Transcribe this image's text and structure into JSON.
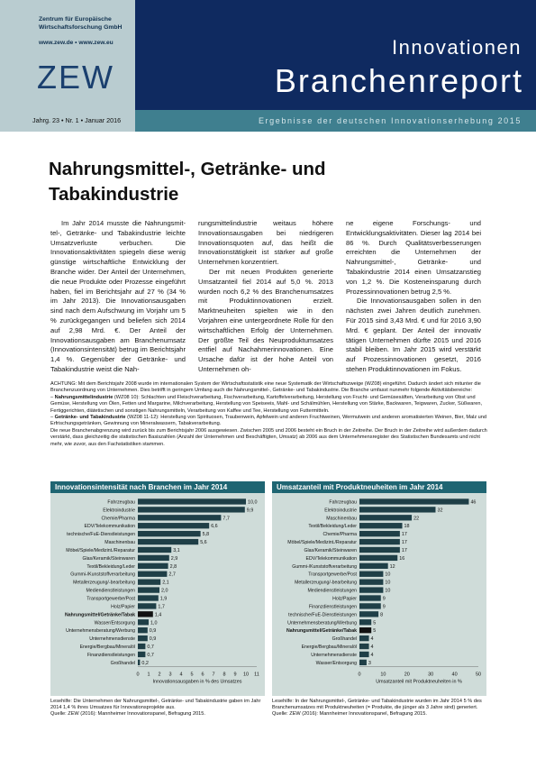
{
  "header": {
    "institute_line1": "Zentrum für Europäische",
    "institute_line2": "Wirtschaftsforschung GmbH",
    "website": "www.zew.de • www.zew.eu",
    "logo": "ZEW",
    "series_line1": "Innovationen",
    "series_line2": "Branchenreport",
    "issue": "Jahrg. 23 • Nr. 1 • Januar 2016",
    "subtitle": "Ergebnisse der deutschen Innovationserhebung 2015"
  },
  "article": {
    "title_line1": "Nahrungsmittel-, Getränke- und",
    "title_line2": "Tabakindustrie",
    "col1": "Im Jahr 2014 musste die Nahrungsmit-tel-, Getränke- und Tabakindustrie leichte Umsatzverluste verbuchen. Die Innovationsaktivitäten spiegeln diese wenig günstige wirtschaftliche Entwicklung der Branche wider. Der Anteil der Unternehmen, die neue Produkte oder Prozesse eingeführt haben, fiel im Berichtsjahr auf 27 % (34 % im Jahr 2013). Die Innovationsausgaben sind nach dem Aufschwung im Vorjahr um 5 % zurückgegangen und beliefen sich 2014 auf 2,98 Mrd. €. Der Anteil der Innovationsausgaben am Branchenumsatz (Innovationsintensität) betrug im Berichtsjahr 1,4 %. Gegenüber der Getränke- und Tabakindustrie weist die Nah-",
    "col2_p1": "rungsmittelindustrie weitaus höhere Innovationsausgaben bei niedrigeren Innovationsquoten auf, das heißt die Innovationstätigkeit ist stärker auf große Unternehmen konzentriert.",
    "col2_p2": "Der mit neuen Produkten generierte Umsatzanteil fiel 2014 auf 5,0 %. 2013 wurden noch 6,2 % des Branchenumsatzes mit Produktinnovationen erzielt. Marktneuheiten spielten wie in den Vorjahren eine untergeordnete Rolle für den wirtschaftlichen Erfolg der Unternehmen. Der größte Teil des Neuproduktumsatzes entfiel auf Nachahmerinnovationen. Eine Ursache dafür ist der hohe Anteil von Unternehmen oh-",
    "col3_p1": "ne eigene Forschungs- und Entwicklungsaktivitäten. Dieser lag 2014 bei 86 %. Durch Qualitätsverbesserungen erreichten die Unternehmen der Nahrungsmittel-, Getränke- und Tabakindustrie 2014 einen Umsatzanstieg von 1,2 %. Die Kosteneinsparung durch Prozessinnovationen betrug 2,5 %.",
    "col3_p2": "Die Innovationsausgaben sollen in den nächsten zwei Jahren deutlich zunehmen. Für 2015 sind 3,43 Mrd. € und für 2016 3,90 Mrd. € geplant. Der Anteil der innovativ tätigen Unternehmen dürfte 2015 und 2016 stabil bleiben. Im Jahr 2015 wird verstärkt auf Prozessinnovationen gesetzt, 2016 stehen Produktinnovationen im Fokus."
  },
  "note": {
    "intro": "ACHTUNG: Mit dem Berichtsjahr 2008 wurde im internationalen System der Wirtschaftsstatistik eine neue Systematik der Wirtschaftszweige (WZ08) eingeführt. Dadurch ändert sich mitunter die Branchenzuordnung von Unternehmen. Dies betrifft in geringem Umfang auch die Nahrungsmittel-, Getränke- und Tabakindustrie. Die Branche umfasst nunmehr folgende Aktivitätsbereiche:",
    "item1_head": "Nahrungsmittelindustrie",
    "item1_text": " (WZ08 10): Schlachten und Fleischverarbeitung, Fischverarbeitung, Kartoffelverarbeitung, Herstellung von Frucht- und Gemüsesäften, Verarbeitung von Obst und Gemüse, Herstellung von Ölen, Fetten und Margarine, Milchverarbeitung, Herstellung von Speiseeis, Mahl- und Schälmühlen, Herstellung von Stärke, Backwaren, Teigwaren, Zucker, Süßwaren, Fertiggerichten, diätetischen und sonstigen Nahrungsmitteln, Verarbeitung von Kaffee und Tee, Herstellung von Futtermitteln.",
    "item2_head": "Getränke- und Tabakindustrie",
    "item2_text": " (WZ08 11-12): Herstellung von Spirituosen, Traubenwein, Apfelwein und anderen Fruchtweinen, Wermutwein und anderen aromatisierten Weinen, Bier, Malz und Erfrischungsgetränken, Gewinnung von Mineralwassern, Tabakverarbeitung.",
    "outro": "Die neue Branchenabgrenzung wird zurück bis zum Berichtsjahr 2006 ausgewiesen. Zwischen 2005 und 2006 besteht ein Bruch in der Zeitreihe. Der Bruch in der Zeitreihe wird außerdem dadurch verstärkt, dass gleichzeitig die statistischen Basiszahlen (Anzahl der Unternehmen und Beschäftigten, Umsatz) ab 2006 aus dem Unternehmensregister des Statistischen Bundesamts und nicht mehr, wie zuvor, aus den Fachstatistiken stammen."
  },
  "captions": {
    "chart1": "Lesehilfe: Die Unternehmen der Nahrungsmittel-, Getränke- und Tabakindustrie gaben im Jahr 2014 1,4 % ihres Umsatzes für Innovationsprojekte aus.",
    "chart1_src": "Quelle: ZEW (2016): Mannheimer Innovationspanel, Befragung 2015.",
    "chart2": "Lesehilfe: In der Nahrungsmittel-, Getränke- und Tabakindustrie wurden im Jahr 2014 5 % des Branchenumsatzes mit Produktneuheiten (= Produkte, die jünger als 3 Jahre sind) generiert.",
    "chart2_src": "Quelle: ZEW (2016): Mannheimer Innovationspanel, Befragung 2015."
  },
  "chart_data": [
    {
      "type": "bar",
      "orientation": "horizontal",
      "title": "Innovationsintensität nach Branchen im Jahr 2014",
      "xlabel": "Innovationsausgaben in % des Umsatzes",
      "xlim": [
        0,
        11
      ],
      "xticks": [
        0,
        1,
        2,
        3,
        4,
        5,
        6,
        7,
        8,
        9,
        10,
        11
      ],
      "categories": [
        "Fahrzeugbau",
        "Elektroindustrie",
        "Chemie/Pharma",
        "EDV/Telekommunikation",
        "technische/FuE-Dienstleistungen",
        "Maschinenbau",
        "Möbel/Spiele/Medizint./Reparatur",
        "Glas/Keramik/Steinwaren",
        "Textil/Bekleidung/Leder",
        "Gummi-/Kunststoffverarbeitung",
        "Metallerzeugung/-bearbeitung",
        "Mediendienstleistungen",
        "Transportgewerbe/Post",
        "Holz/Papier",
        "Nahrungsmittel/Getränke/Tabak",
        "Wasser/Entsorgung",
        "Unternehmensberatung/Werbung",
        "Unternehmensdienste",
        "Energie/Bergbau/Mineralöl",
        "Finanzdienstleistungen",
        "Großhandel"
      ],
      "values": [
        10.0,
        9.9,
        7.7,
        6.6,
        5.8,
        5.6,
        3.1,
        2.9,
        2.8,
        2.7,
        2.1,
        2.0,
        1.9,
        1.7,
        1.4,
        1.0,
        0.9,
        0.9,
        0.7,
        0.7,
        0.2
      ],
      "labels": [
        "10,0",
        "9,9",
        "7,7",
        "6,6",
        "5,8",
        "5,6",
        "3,1",
        "2,9",
        "2,8",
        "2,7",
        "2,1",
        "2,0",
        "1,9",
        "1,7",
        "1,4",
        "1,0",
        "0,9",
        "0,9",
        "0,7",
        "0,7",
        "0,2"
      ],
      "highlight": "Nahrungsmittel/Getränke/Tabak",
      "bar_color": "#1f3f47",
      "highlight_color": "#111111"
    },
    {
      "type": "bar",
      "orientation": "horizontal",
      "title": "Umsatzanteil mit Produktneuheiten im Jahr 2014",
      "xlabel": "Umsatzanteil mit Produktneuheiten in %",
      "xlim": [
        0,
        50
      ],
      "xticks": [
        0,
        10,
        20,
        30,
        40,
        50
      ],
      "categories": [
        "Fahrzeugbau",
        "Elektroindustrie",
        "Maschinenbau",
        "Textil/Bekleidung/Leder",
        "Chemie/Pharma",
        "Möbel/Spiele/Medizint./Reparatur",
        "Glas/Keramik/Steinwaren",
        "EDV/Telekommunikation",
        "Gummi-/Kunststoffverarbeitung",
        "Transportgewerbe/Post",
        "Metallerzeugung/-bearbeitung",
        "Mediendienstleistungen",
        "Holz/Papier",
        "Finanzdienstleistungen",
        "technische/FuE-Dienstleistungen",
        "Unternehmensberatung/Werbung",
        "Nahrungsmittel/Getränke/Tabak",
        "Großhandel",
        "Energie/Bergbau/Mineralöl",
        "Unternehmensdienste",
        "Wasser/Entsorgung"
      ],
      "values": [
        46,
        32,
        22,
        18,
        17,
        17,
        17,
        16,
        12,
        10,
        10,
        10,
        9,
        9,
        8,
        5,
        5,
        4,
        4,
        4,
        3
      ],
      "labels": [
        "46",
        "32",
        "22",
        "18",
        "17",
        "17",
        "17",
        "16",
        "12",
        "10",
        "10",
        "10",
        "9",
        "9",
        "8",
        "5",
        "5",
        "4",
        "4",
        "4",
        "3"
      ],
      "highlight": "Nahrungsmittel/Getränke/Tabak",
      "bar_color": "#1f3f47",
      "highlight_color": "#111111"
    }
  ]
}
